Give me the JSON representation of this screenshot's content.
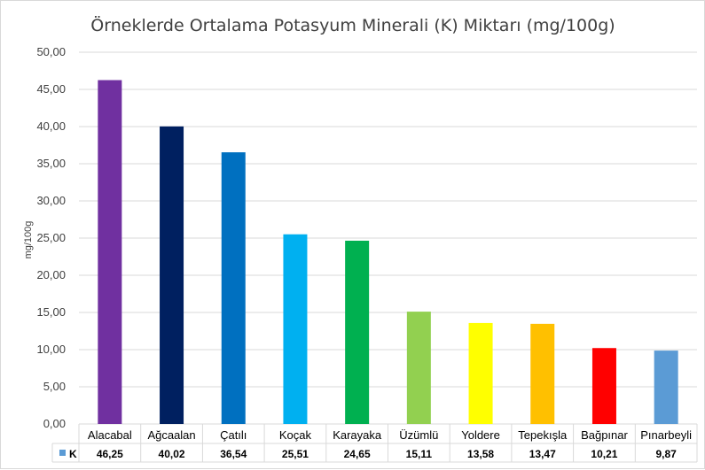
{
  "chart_data": {
    "type": "bar",
    "title": "Örneklerde Ortalama Potasyum Minerali (K) Miktarı (mg/100g)",
    "ylabel": "mg/100g",
    "xlabel": "",
    "ylim": [
      0,
      50
    ],
    "yticks": [
      "0,00",
      "5,00",
      "10,00",
      "15,00",
      "20,00",
      "25,00",
      "30,00",
      "35,00",
      "40,00",
      "45,00",
      "50,00"
    ],
    "categories": [
      "Alacabal",
      "Ağcaalan",
      "Çatılı",
      "Koçak",
      "Karayaka",
      "Üzümlü",
      "Yoldere",
      "Tepekışla",
      "Bağpınar",
      "Pınarbeyli"
    ],
    "series": [
      {
        "name": "K",
        "values": [
          46.25,
          40.02,
          36.54,
          25.51,
          24.65,
          15.11,
          13.58,
          13.47,
          10.21,
          9.87
        ],
        "labels": [
          "46,25",
          "40,02",
          "36,54",
          "25,51",
          "24,65",
          "15,11",
          "13,58",
          "13,47",
          "10,21",
          "9,87"
        ]
      }
    ],
    "colors": [
      "#7030a0",
      "#002060",
      "#0070c0",
      "#00b0f0",
      "#00b050",
      "#92d050",
      "#ffff00",
      "#ffc000",
      "#ff0000",
      "#5b9bd5"
    ],
    "legend_color": "#5b9bd5",
    "grid": true,
    "data_table": true
  }
}
